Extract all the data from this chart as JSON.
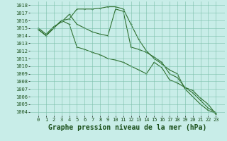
{
  "title": "Graphe pression niveau de la mer (hPa)",
  "x_labels": [
    "0",
    "1",
    "2",
    "3",
    "4",
    "5",
    "6",
    "7",
    "8",
    "9",
    "10",
    "11",
    "12",
    "13",
    "14",
    "15",
    "16",
    "17",
    "18",
    "19",
    "20",
    "21",
    "22",
    "23"
  ],
  "ylim": [
    1003.5,
    1018.5
  ],
  "yticks": [
    1004,
    1005,
    1006,
    1007,
    1008,
    1009,
    1010,
    1011,
    1012,
    1013,
    1014,
    1015,
    1016,
    1017,
    1018
  ],
  "line1": [
    1014.8,
    1014.0,
    1015.0,
    1016.0,
    1016.2,
    1017.5,
    1017.5,
    1017.5,
    1017.6,
    1017.8,
    1017.8,
    1017.5,
    1015.5,
    1013.5,
    1012.0,
    1011.0,
    1010.3,
    1009.5,
    1009.0,
    1007.0,
    1006.0,
    1005.0,
    1004.2,
    1003.8
  ],
  "line2": [
    1015.0,
    1014.2,
    1015.2,
    1015.8,
    1016.8,
    1015.5,
    1015.0,
    1014.5,
    1014.2,
    1014.0,
    1017.5,
    1017.2,
    1012.5,
    1012.2,
    1011.8,
    1011.2,
    1010.5,
    1009.0,
    1008.5,
    1007.2,
    1006.5,
    1005.5,
    1004.5,
    1003.9
  ],
  "line3": [
    1014.8,
    1014.0,
    1015.0,
    1016.0,
    1015.5,
    1012.5,
    1012.2,
    1011.8,
    1011.5,
    1011.0,
    1010.8,
    1010.5,
    1010.0,
    1009.5,
    1009.0,
    1010.5,
    1009.8,
    1008.2,
    1007.8,
    1007.2,
    1006.8,
    1005.8,
    1005.0,
    1003.7
  ],
  "line_color": "#2d6e2d",
  "bg_color": "#c8ede8",
  "grid_color": "#7bbfaa",
  "title_color": "#1a4f1a",
  "tick_color": "#1a4f1a",
  "title_fontsize": 7,
  "tick_fontsize": 5
}
